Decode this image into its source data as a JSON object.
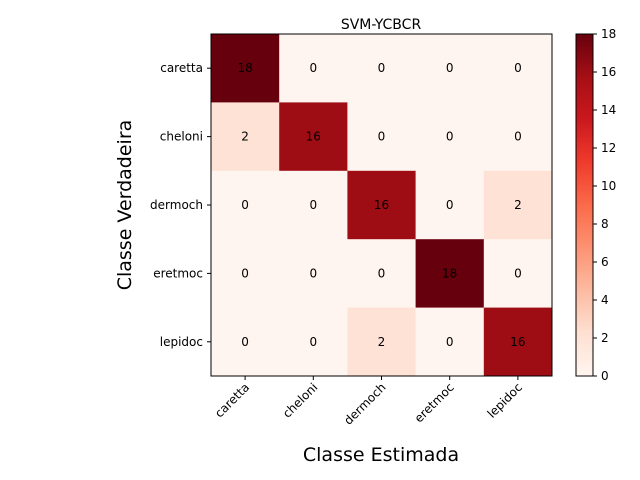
{
  "chart_data": {
    "type": "heatmap",
    "title": "SVM-YCBCR",
    "xlabel": "Classe Estimada",
    "ylabel": "Classe Verdadeira",
    "x_categories": [
      "caretta",
      "cheloni",
      "dermoch",
      "eretmoc",
      "lepidoc"
    ],
    "y_categories": [
      "caretta",
      "cheloni",
      "dermoch",
      "eretmoc",
      "lepidoc"
    ],
    "values": [
      [
        18,
        0,
        0,
        0,
        0
      ],
      [
        2,
        16,
        0,
        0,
        0
      ],
      [
        0,
        0,
        16,
        0,
        2
      ],
      [
        0,
        0,
        0,
        18,
        0
      ],
      [
        0,
        0,
        2,
        0,
        16
      ]
    ],
    "colormap": "Reds",
    "color_range": [
      0,
      18
    ],
    "colorbar_ticks": [
      0,
      2,
      4,
      6,
      8,
      10,
      12,
      14,
      16,
      18
    ],
    "grid": false
  }
}
